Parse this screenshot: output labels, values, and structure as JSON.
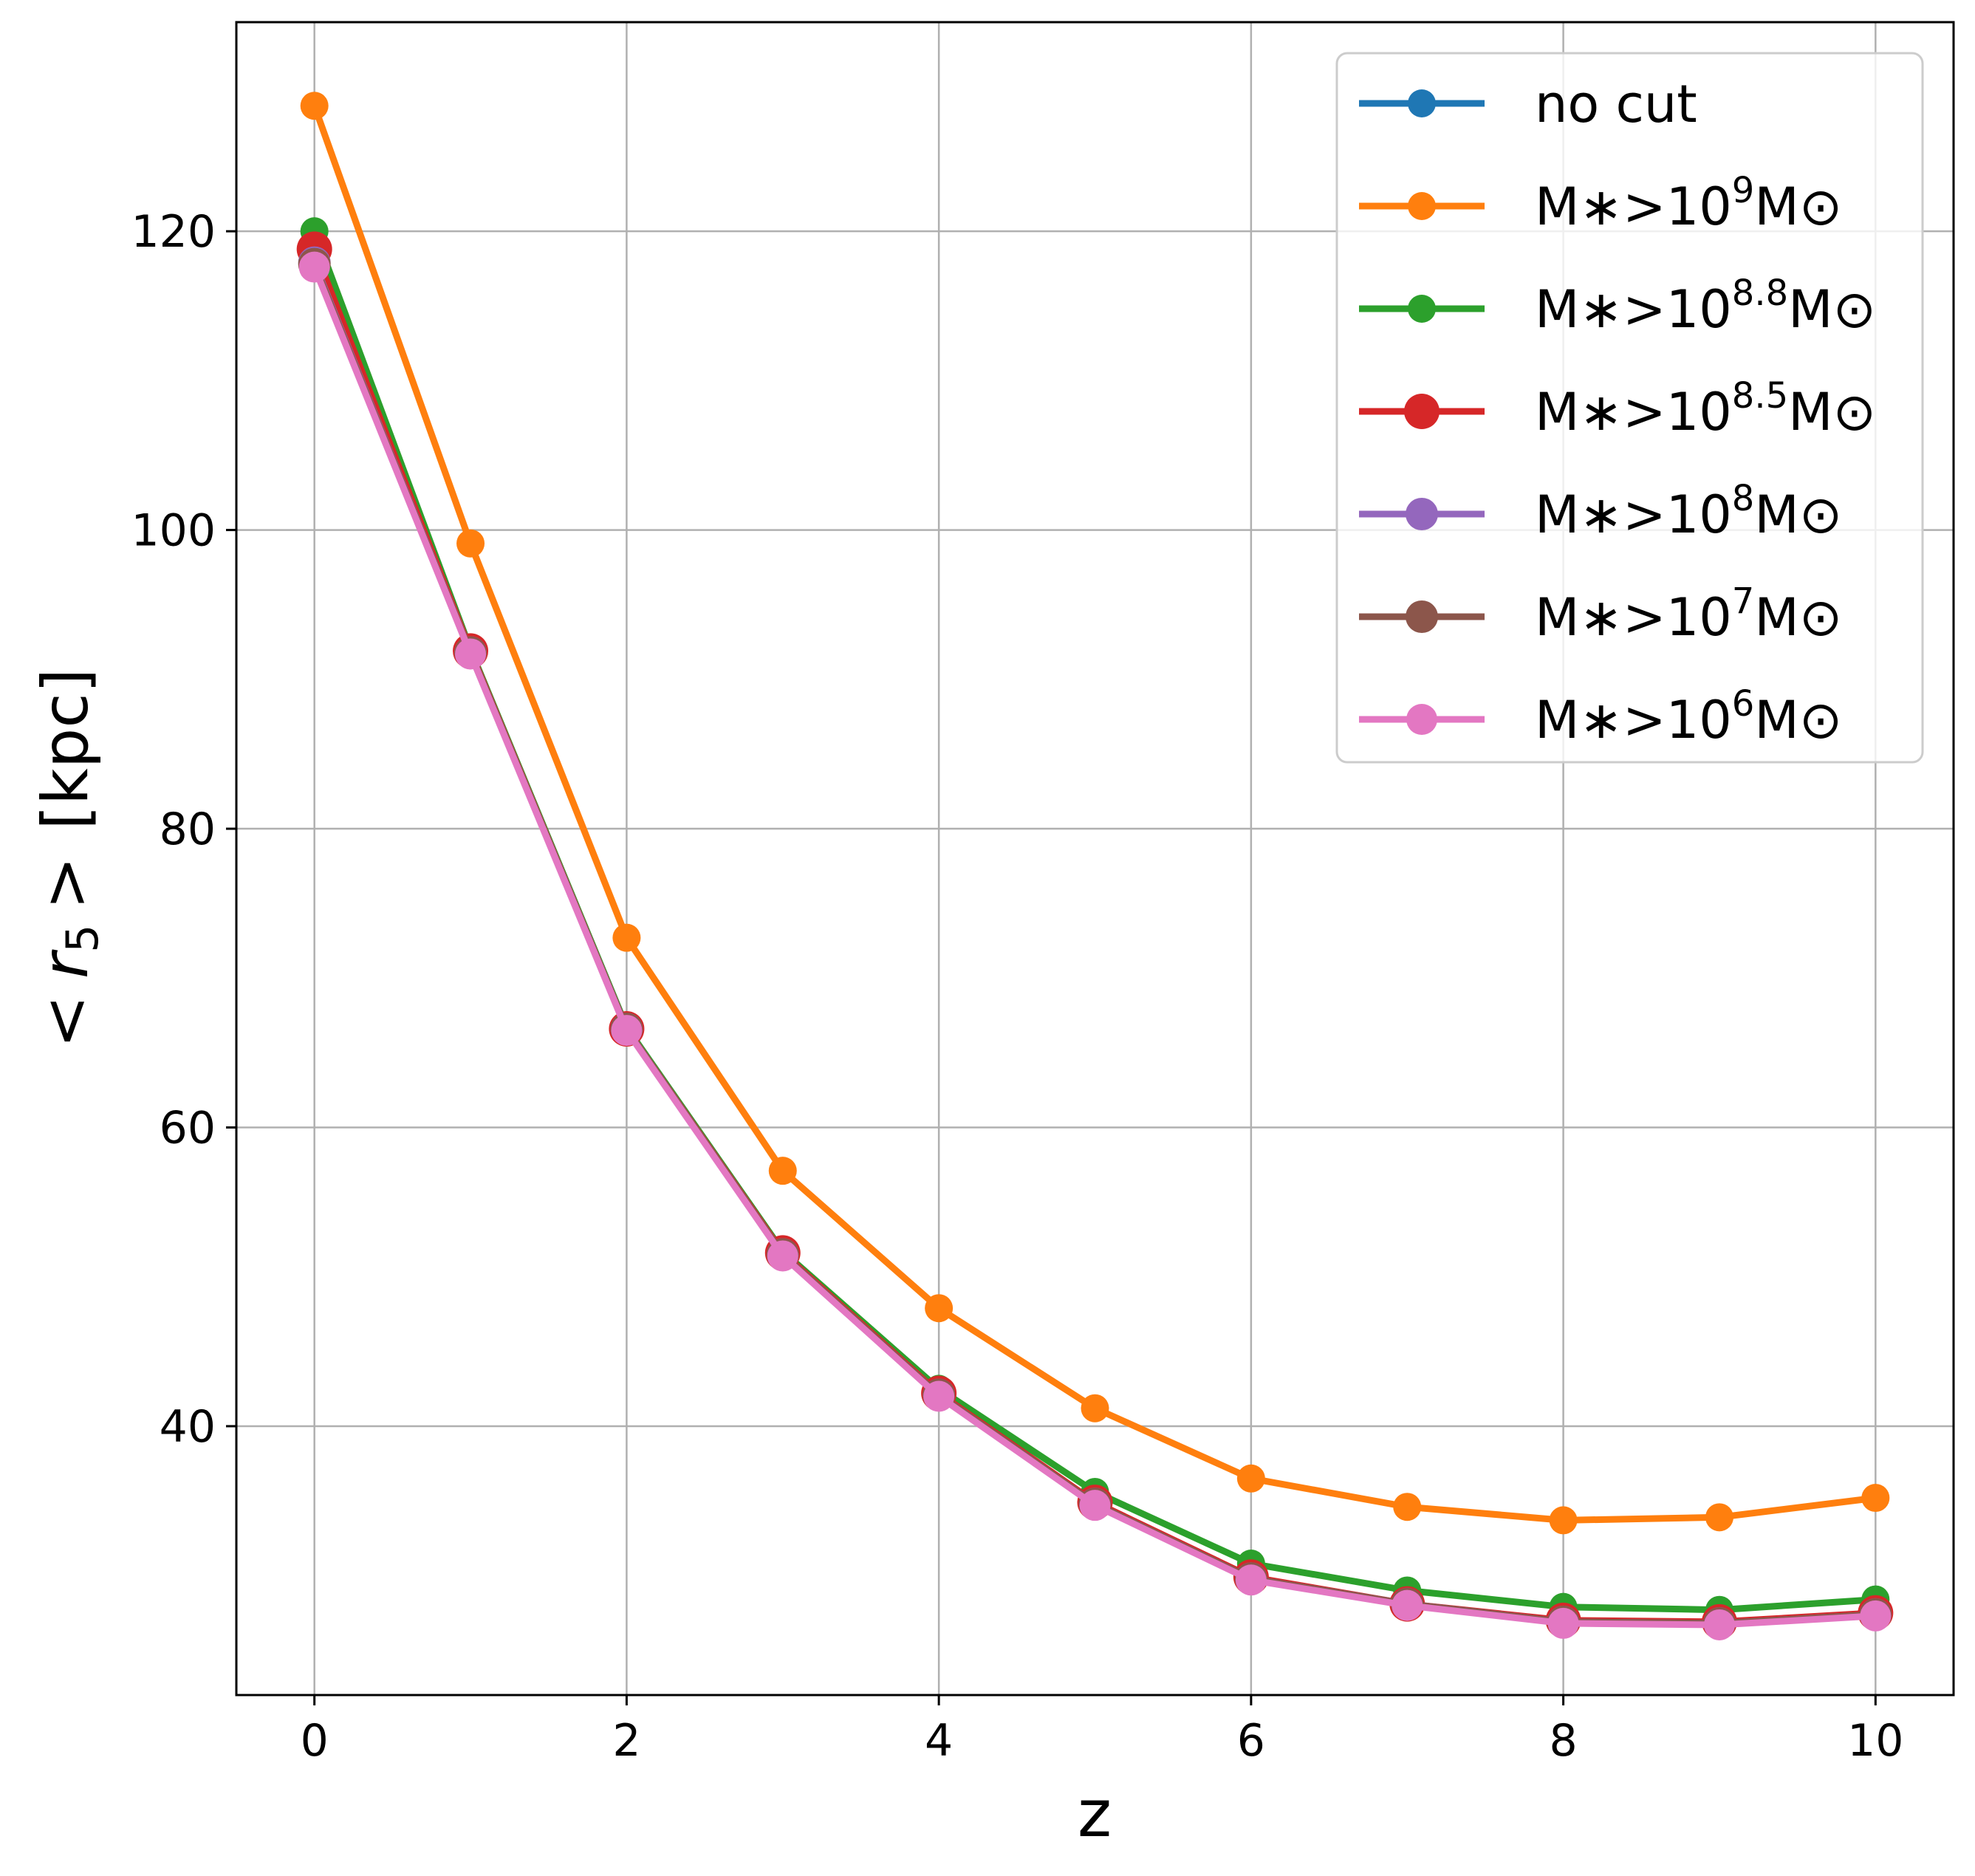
{
  "chart_data": {
    "type": "line",
    "title": "",
    "xlabel": "z",
    "ylabel": {
      "lt": "<",
      "var": "r",
      "sub": "5",
      "gt": ">",
      "unit": "[kpc]"
    },
    "xlim": [
      -0.5,
      10.5
    ],
    "ylim": [
      22,
      134
    ],
    "x_ticks": [
      0,
      2,
      4,
      6,
      8,
      10
    ],
    "x_tick_labels": [
      "0",
      "2",
      "4",
      "6",
      "8",
      "10"
    ],
    "y_ticks": [
      40,
      60,
      80,
      100,
      120
    ],
    "y_tick_labels": [
      "40",
      "60",
      "80",
      "100",
      "120"
    ],
    "grid": true,
    "legend_position": "top-right",
    "x": [
      0,
      1,
      2,
      3,
      4,
      5,
      6,
      7,
      8,
      9,
      10
    ],
    "series": [
      {
        "name": {
          "base": "no cut",
          "exp": "",
          "suffix": ""
        },
        "color": "#1f77b4",
        "values": [
          117.8,
          91.8,
          66.6,
          51.5,
          42.1,
          34.8,
          29.8,
          28.1,
          26.9,
          26.8,
          27.4
        ]
      },
      {
        "name": {
          "base": "M∗>10",
          "exp": "9",
          "suffix": "M⊙"
        },
        "color": "#ff7f0e",
        "values": [
          128.4,
          99.1,
          72.7,
          57.1,
          47.9,
          41.2,
          36.5,
          34.6,
          33.7,
          33.9,
          35.2
        ]
      },
      {
        "name": {
          "base": "M∗>10",
          "exp": "8.8",
          "suffix": "M⊙"
        },
        "color": "#2ca02c",
        "values": [
          120.0,
          92.0,
          66.7,
          51.7,
          42.5,
          35.6,
          30.8,
          29.0,
          27.9,
          27.7,
          28.4
        ]
      },
      {
        "name": {
          "base": "M∗>10",
          "exp": "8.5",
          "suffix": "M⊙"
        },
        "color": "#d62728",
        "values": [
          118.8,
          91.9,
          66.6,
          51.6,
          42.2,
          34.9,
          29.9,
          28.1,
          27.0,
          26.9,
          27.5
        ]
      },
      {
        "name": {
          "base": "M∗>10",
          "exp": "8",
          "suffix": "M⊙"
        },
        "color": "#9467bd",
        "values": [
          117.9,
          91.8,
          66.6,
          51.5,
          42.1,
          34.8,
          29.8,
          28.1,
          26.9,
          26.8,
          27.4
        ]
      },
      {
        "name": {
          "base": "M∗>10",
          "exp": "7",
          "suffix": "M⊙"
        },
        "color": "#8c564b",
        "values": [
          117.8,
          91.8,
          66.6,
          51.5,
          42.1,
          34.8,
          29.8,
          28.1,
          26.9,
          26.8,
          27.4
        ]
      },
      {
        "name": {
          "base": "M∗>10",
          "exp": "6",
          "suffix": "M⊙"
        },
        "color": "#e377c2",
        "values": [
          117.6,
          91.7,
          66.5,
          51.4,
          42.0,
          34.7,
          29.7,
          28.0,
          26.8,
          26.7,
          27.3
        ]
      }
    ]
  }
}
